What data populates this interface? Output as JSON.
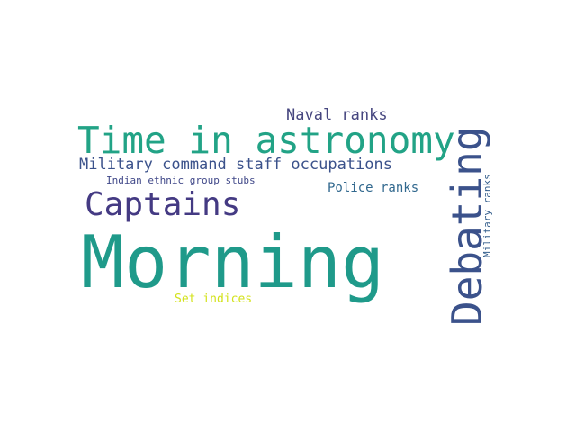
{
  "words": [
    {
      "id": "morning",
      "text": "Morning",
      "color": "#1f9a8a"
    },
    {
      "id": "time",
      "text": "Time in astronomy",
      "color": "#22a386"
    },
    {
      "id": "captains",
      "text": "Captains",
      "color": "#443a83"
    },
    {
      "id": "military_cmd",
      "text": "Military command staff occupations",
      "color": "#3b528b"
    },
    {
      "id": "naval",
      "text": "Naval ranks",
      "color": "#46467f"
    },
    {
      "id": "indian",
      "text": "Indian ethnic group stubs",
      "color": "#3f4788"
    },
    {
      "id": "police",
      "text": "Police ranks",
      "color": "#31688e"
    },
    {
      "id": "set",
      "text": "Set indices",
      "color": "#d3e21b"
    },
    {
      "id": "debating",
      "text": "Debating",
      "color": "#3b528b"
    },
    {
      "id": "military_ranks",
      "text": "Military ranks",
      "color": "#355f8d"
    }
  ]
}
